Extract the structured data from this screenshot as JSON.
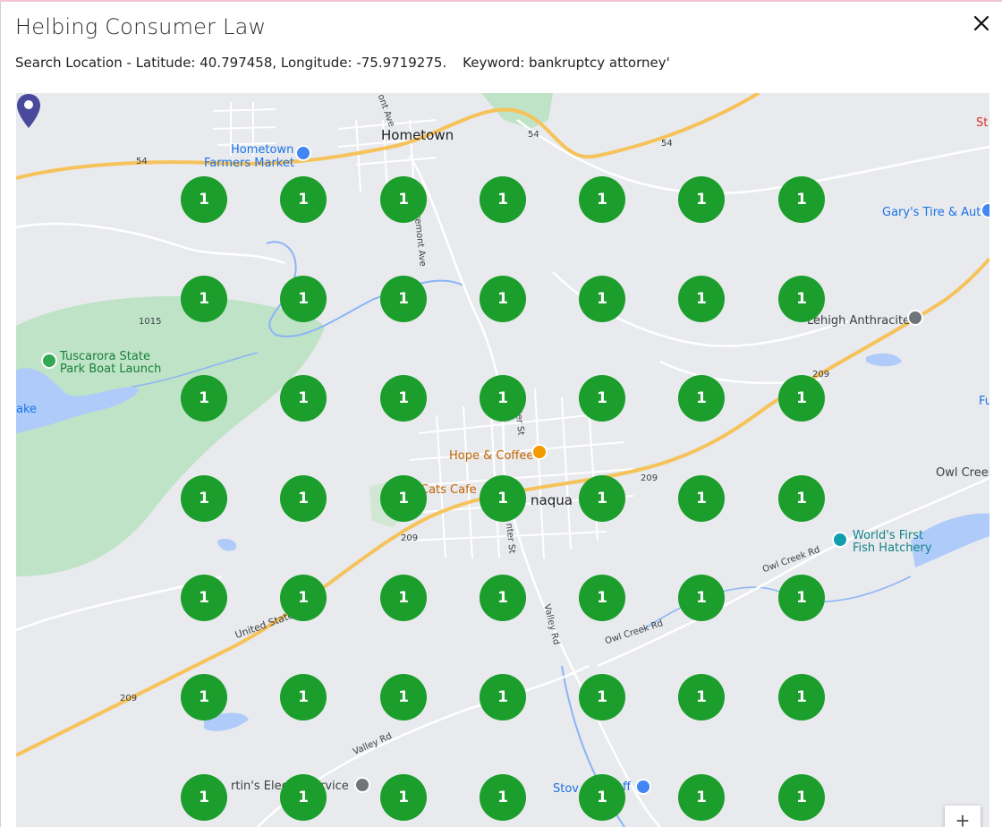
{
  "modal": {
    "title": "Helbing Consumer Law",
    "search_location": "Search Location - Latitude: 40.797458, Longitude: -75.9719275.",
    "keyword": "Keyword: bankruptcy attorney'",
    "close_icon": "close-icon"
  },
  "map": {
    "labels": {
      "hometown": "Hometown",
      "farmers_market_1": "Hometown",
      "farmers_market_2": "Farmers Market",
      "garys": "Gary's Tire & Auto",
      "lehigh": "Lehigh Anthracite",
      "tuscarora_1": "Tuscarora State",
      "tuscarora_2": "Park Boat Launch",
      "lake": "ake",
      "hope_coffee": "Hope & Coffee",
      "cats_cafe": "Cats Cafe",
      "tamaqua": "naqua",
      "owl_creek": "Owl Creek",
      "fish_hatchery_1": "World's First",
      "fish_hatchery_2": "Fish Hatchery",
      "st_edge": "St",
      "fu_edge": "Fu",
      "martins": "rtin's Elect",
      "service": "rvice",
      "stove": "Stov",
      "ff": "ff",
      "road_54a": "54",
      "road_54b": "54",
      "road_54c": "54",
      "road_1015": "1015",
      "road_209a": "209",
      "road_209b": "209",
      "road_209c": "209",
      "road_209d": "209",
      "claremont": "Claremont Ave",
      "ont_ave": "ont Ave",
      "valley_rd_1": "Valley Rd",
      "valley_rd_2": "Valley Rd",
      "owl_creek_rd_1": "Owl Creek Rd",
      "owl_creek_rd_2": "Owl Creek Rd",
      "united_states": "United State",
      "center_st_1": "nter St",
      "center_st_2": "nter St"
    },
    "grid_value": "1",
    "zoom_in": "+",
    "colors": {
      "marker": "#1b9e2b",
      "pin": "#4a4a9c"
    }
  }
}
